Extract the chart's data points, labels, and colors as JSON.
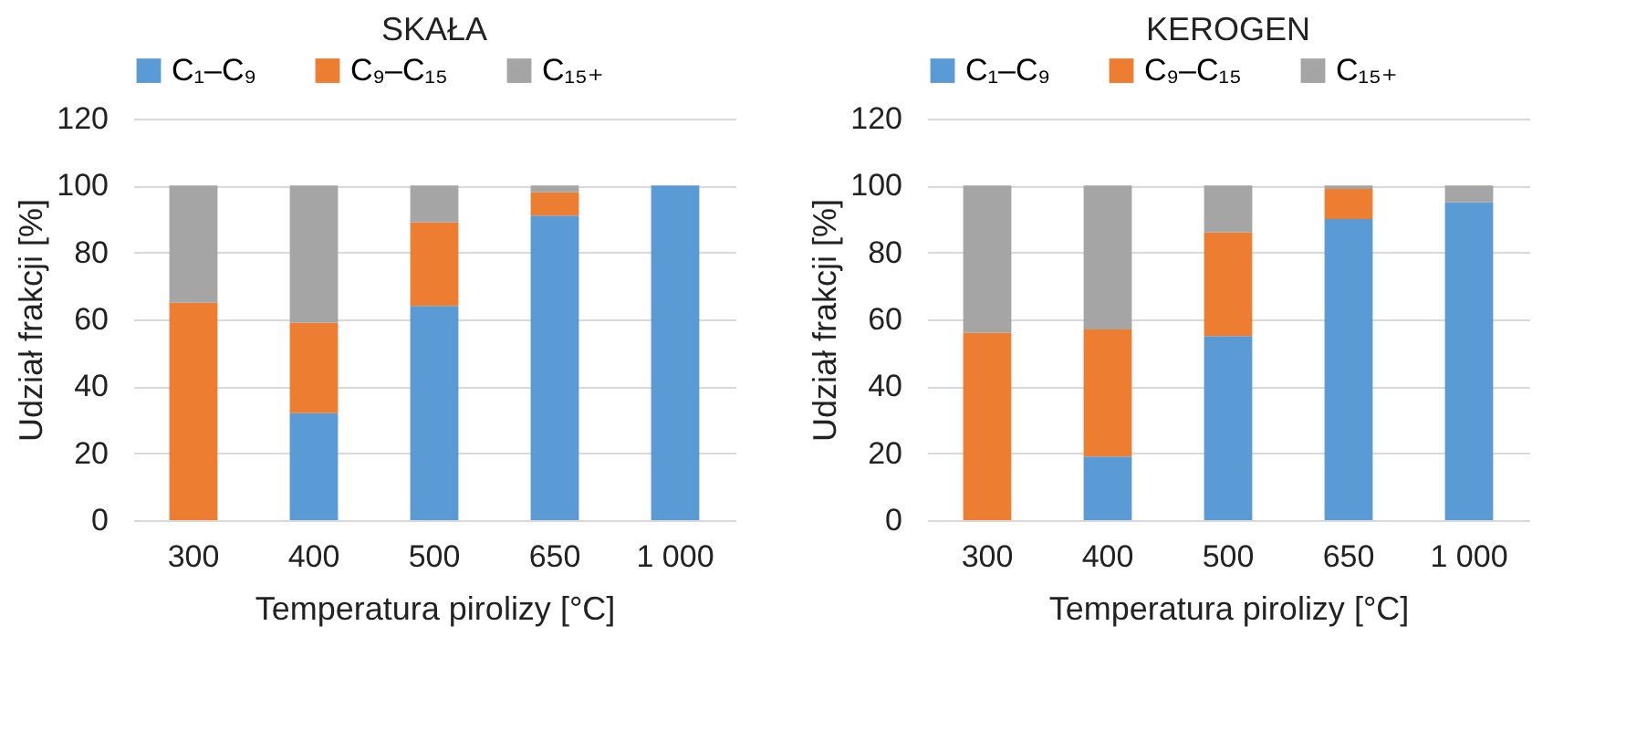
{
  "chart_data": [
    {
      "type": "bar",
      "title": "SKAŁA",
      "xlabel": "Temperatura pirolizy [°C]",
      "ylabel": "Udział frakcji [%]",
      "categories": [
        "300",
        "400",
        "500",
        "650",
        "1 000"
      ],
      "stacked": true,
      "ylim": [
        0,
        120
      ],
      "yticks": [
        0,
        20,
        40,
        60,
        80,
        100,
        120
      ],
      "grid": "y",
      "legend": "top",
      "series": [
        {
          "name": "C₁–C₉",
          "color": "#5b9bd5",
          "values": [
            0,
            32,
            64,
            91,
            100
          ]
        },
        {
          "name": "C₉–C₁₅",
          "color": "#ed7d31",
          "values": [
            65,
            27,
            25,
            7,
            0
          ]
        },
        {
          "name": "C₁₅₊",
          "color": "#a5a5a5",
          "values": [
            35,
            41,
            11,
            2,
            0
          ]
        }
      ]
    },
    {
      "type": "bar",
      "title": "KEROGEN",
      "xlabel": "Temperatura pirolizy [°C]",
      "ylabel": "Udział frakcji [%]",
      "categories": [
        "300",
        "400",
        "500",
        "650",
        "1 000"
      ],
      "stacked": true,
      "ylim": [
        0,
        120
      ],
      "yticks": [
        0,
        20,
        40,
        60,
        80,
        100,
        120
      ],
      "grid": "y",
      "legend": "top",
      "series": [
        {
          "name": "C₁–C₉",
          "color": "#5b9bd5",
          "values": [
            0,
            19,
            55,
            90,
            95
          ]
        },
        {
          "name": "C₉–C₁₅",
          "color": "#ed7d31",
          "values": [
            56,
            38,
            31,
            9,
            0
          ]
        },
        {
          "name": "C₁₅₊",
          "color": "#a5a5a5",
          "values": [
            44,
            43,
            14,
            1,
            5
          ]
        }
      ]
    }
  ]
}
